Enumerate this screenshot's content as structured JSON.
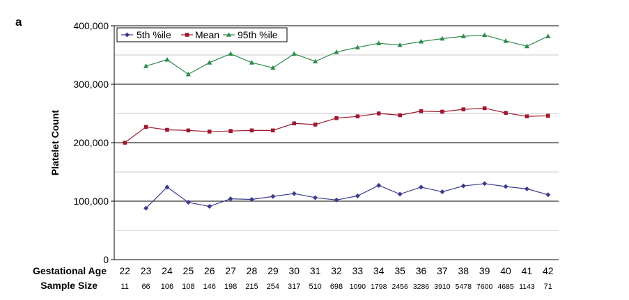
{
  "panel_label": "a",
  "chart_data": {
    "type": "line",
    "ylabel": "Platelet Count",
    "ylim": [
      0,
      400000
    ],
    "yticks": [
      0,
      100000,
      200000,
      300000,
      400000
    ],
    "ytick_labels": [
      "0",
      "100,000",
      "200,000",
      "300,000",
      "400,000"
    ],
    "grid": true,
    "legend_position": "top-left",
    "x_row_label": "Gestational Age",
    "x": [
      "22",
      "23",
      "24",
      "25",
      "26",
      "27",
      "28",
      "29",
      "30",
      "31",
      "32",
      "33",
      "34",
      "35",
      "36",
      "37",
      "38",
      "39",
      "40",
      "41",
      "42"
    ],
    "sample_size_label": "Sample Size",
    "sample_size": [
      "11",
      "66",
      "106",
      "108",
      "146",
      "198",
      "215",
      "254",
      "317",
      "510",
      "698",
      "1090",
      "1798",
      "2456",
      "3286",
      "3910",
      "5478",
      "7600",
      "4685",
      "1143",
      "71"
    ],
    "series": [
      {
        "name": "5th %ile",
        "color": "#3a3a8c",
        "marker": "diamond",
        "values": [
          null,
          88000,
          124000,
          98000,
          91000,
          104000,
          103000,
          108000,
          113000,
          106000,
          102000,
          109000,
          127000,
          112000,
          124000,
          116000,
          126000,
          130000,
          125000,
          121000,
          111000
        ]
      },
      {
        "name": "Mean",
        "color": "#a0182e",
        "marker": "square",
        "values": [
          200000,
          227000,
          222000,
          221000,
          219000,
          220000,
          221000,
          221000,
          233000,
          231000,
          242000,
          245000,
          250000,
          247000,
          254000,
          253000,
          257000,
          259000,
          251000,
          245000,
          246000
        ]
      },
      {
        "name": "95th %ile",
        "color": "#2e8a4a",
        "marker": "triangle",
        "values": [
          null,
          331000,
          342000,
          317000,
          337000,
          352000,
          337000,
          328000,
          352000,
          339000,
          355000,
          363000,
          370000,
          367000,
          373000,
          378000,
          382000,
          384000,
          374000,
          365000,
          382000
        ]
      }
    ]
  }
}
